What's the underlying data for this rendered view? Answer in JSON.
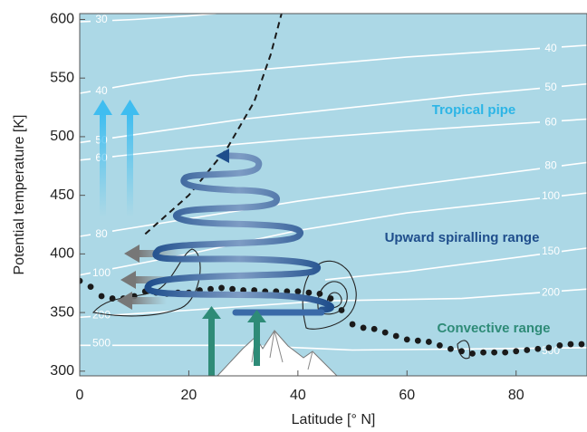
{
  "chart_data": {
    "type": "line",
    "xlabel": "Latitude [° N]",
    "ylabel": "Potential temperature [K]",
    "xlim": [
      0,
      93
    ],
    "ylim": [
      296,
      605
    ],
    "xticks": [
      0,
      20,
      40,
      60,
      80
    ],
    "yticks": [
      300,
      350,
      400,
      450,
      500,
      550,
      600
    ],
    "background": "#acd8e6",
    "annotations": [
      {
        "text": "Tropical pipe",
        "color": "#2cb5e6"
      },
      {
        "text": "Upward spiralling range",
        "color": "#1f4e8c"
      },
      {
        "text": "Convective range",
        "color": "#2e8b77"
      }
    ],
    "contours": [
      {
        "level": 30,
        "x": [
          0,
          10,
          20,
          25
        ],
        "y": [
          598,
          600,
          603,
          605
        ]
      },
      {
        "level": 40,
        "x": [
          0,
          10,
          20,
          40,
          60,
          80,
          93
        ],
        "y": [
          537,
          545,
          552,
          560,
          568,
          574,
          578
        ]
      },
      {
        "level": 50,
        "x": [
          0,
          15,
          30,
          50,
          70,
          93
        ],
        "y": [
          495,
          505,
          515,
          525,
          535,
          545
        ]
      },
      {
        "level": 60,
        "x": [
          0,
          20,
          40,
          60,
          93
        ],
        "y": [
          480,
          490,
          498,
          505,
          515
        ]
      },
      {
        "level": 80,
        "x": [
          0,
          20,
          40,
          60,
          93
        ],
        "y": [
          415,
          430,
          445,
          458,
          478
        ]
      },
      {
        "level": 100,
        "x": [
          0,
          20,
          40,
          60,
          93
        ],
        "y": [
          382,
          400,
          420,
          435,
          452
        ]
      },
      {
        "level": 150,
        "x": [
          45,
          60,
          80,
          93
        ],
        "y": [
          378,
          385,
          397,
          405
        ]
      },
      {
        "level": 200,
        "x": [
          0,
          20,
          45,
          70,
          93
        ],
        "y": [
          346,
          352,
          360,
          362,
          370
        ]
      },
      {
        "level": 500,
        "x": [
          0,
          30,
          50,
          73,
          93
        ],
        "y": [
          322,
          322,
          318,
          319,
          320
        ]
      }
    ],
    "tropopause": {
      "color": "#1a1a1a",
      "x": [
        0,
        2,
        4,
        6,
        8,
        10,
        12,
        14,
        16,
        18,
        20,
        22,
        24,
        26,
        28,
        30,
        32,
        34,
        36,
        38,
        40,
        42,
        44,
        46,
        48,
        50,
        52,
        54,
        56,
        58,
        60,
        62,
        64,
        66,
        68,
        70,
        72,
        74,
        76,
        78,
        80,
        82,
        84,
        86,
        88,
        90,
        92
      ],
      "y": [
        377,
        372,
        364,
        362,
        362,
        364,
        368,
        367,
        366,
        367,
        367,
        369,
        370,
        371,
        370,
        369,
        369,
        368,
        368,
        368,
        368,
        367,
        366,
        362,
        352,
        340,
        337,
        336,
        333,
        330,
        327,
        326,
        325,
        322,
        319,
        317,
        315,
        316,
        316,
        316,
        317,
        318,
        319,
        320,
        322,
        323,
        323
      ]
    },
    "boundary": {
      "color": "#1a1a1a",
      "x": [
        12,
        20,
        27,
        32,
        35,
        37
      ],
      "y": [
        417,
        450,
        490,
        530,
        570,
        605
      ]
    }
  }
}
